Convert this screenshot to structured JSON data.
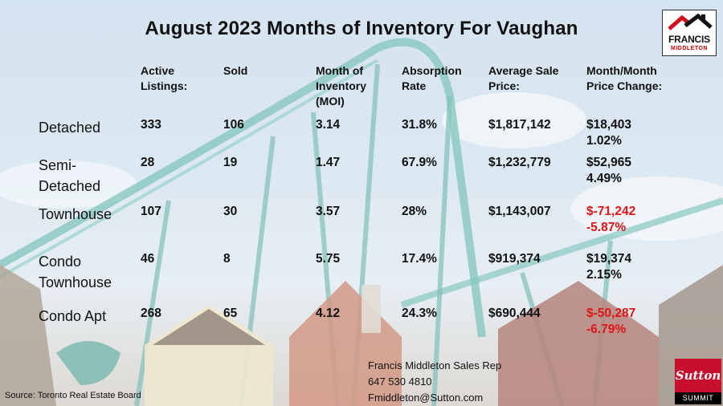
{
  "title": "August 2023 Months of Inventory For Vaughan",
  "logo": {
    "line1": "FRANCIS",
    "line2": "MIDDLETON"
  },
  "headers": {
    "active": "Active\nListings:",
    "sold": "Sold",
    "moi": "Month of\nInventory\n(MOI)",
    "absorption": "Absorption\nRate",
    "avg_price": "Average Sale\nPrice:",
    "change": "Month/Month\nPrice Change:"
  },
  "rows": [
    {
      "label": "Detached",
      "active": "333",
      "sold": "106",
      "moi": "3.14",
      "absorption": "31.8%",
      "avg_price": "$1,817,142",
      "change": "$18,403\n1.02%",
      "negative": false
    },
    {
      "label": "Semi-\nDetached",
      "active": "28",
      "sold": "19",
      "moi": "1.47",
      "absorption": "67.9%",
      "avg_price": "$1,232,779",
      "change": "$52,965\n4.49%",
      "negative": false
    },
    {
      "label": "Townhouse",
      "active": "107",
      "sold": "30",
      "moi": "3.57",
      "absorption": "28%",
      "avg_price": "$1,143,007",
      "change": "$-71,242\n-5.87%",
      "negative": true
    },
    {
      "label": "Condo\nTownhouse",
      "active": "46",
      "sold": "8",
      "moi": "5.75",
      "absorption": "17.4%",
      "avg_price": "$919,374",
      "change": "$19,374\n2.15%",
      "negative": false
    },
    {
      "label": "Condo Apt",
      "active": "268",
      "sold": "65",
      "moi": "4.12",
      "absorption": "24.3%",
      "avg_price": "$690,444",
      "change": "$-50,287\n-6.79%",
      "negative": true
    }
  ],
  "contact": {
    "name": "Francis Middleton Sales Rep",
    "phone": "647 530 4810",
    "email": "Fmiddleton@Sutton.com"
  },
  "source": "Source: Toronto Real Estate Board",
  "sutton": {
    "brand": "Sutton",
    "sub": "SUMMIT"
  },
  "colors": {
    "negative": "#e01515",
    "text": "#111111",
    "logo_red": "#c8102e"
  }
}
